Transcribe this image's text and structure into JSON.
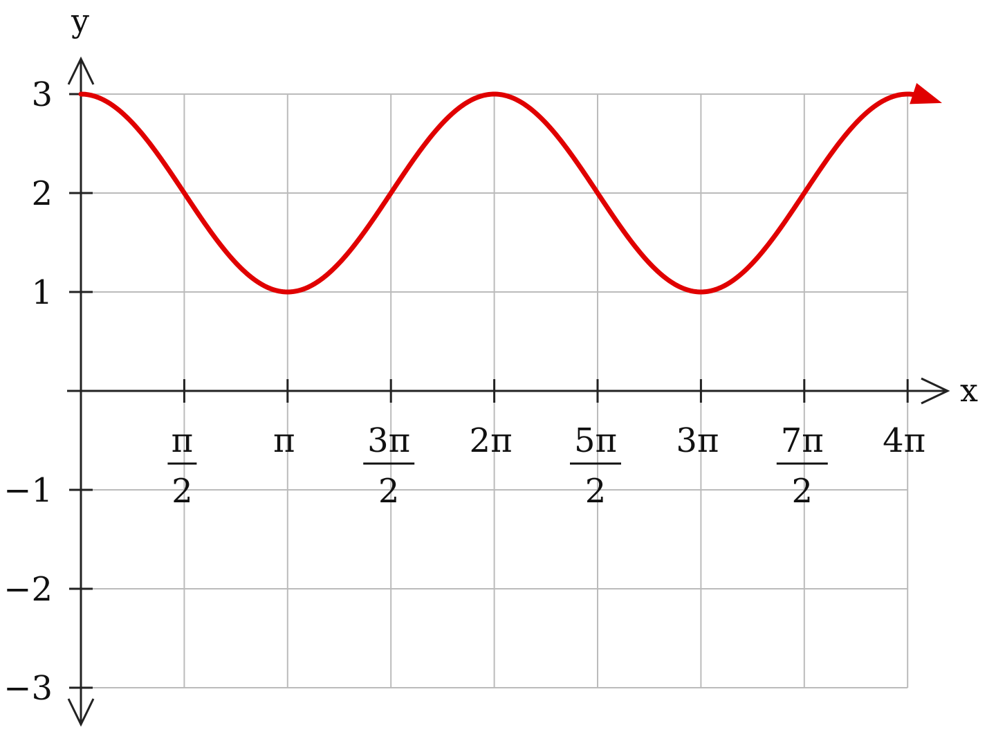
{
  "chart_data": {
    "type": "line",
    "title": "",
    "xlabel": "x",
    "ylabel": "y",
    "xlim": [
      0,
      12.566
    ],
    "ylim": [
      -3,
      3
    ],
    "grid": true,
    "x_ticks": [
      {
        "value": 1.5708,
        "numerator": "π",
        "denominator": "2"
      },
      {
        "value": 3.1416,
        "label": "π"
      },
      {
        "value": 4.7124,
        "numerator": "3π",
        "denominator": "2"
      },
      {
        "value": 6.2832,
        "label": "2π"
      },
      {
        "value": 7.854,
        "numerator": "5π",
        "denominator": "2"
      },
      {
        "value": 9.4248,
        "label": "3π"
      },
      {
        "value": 10.9956,
        "numerator": "7π",
        "denominator": "2"
      },
      {
        "value": 12.5664,
        "label": "4π"
      }
    ],
    "y_ticks": [
      {
        "value": 3,
        "label": "3"
      },
      {
        "value": 2,
        "label": "2"
      },
      {
        "value": 1,
        "label": "1"
      },
      {
        "value": -1,
        "label": "−1"
      },
      {
        "value": -2,
        "label": "−2"
      },
      {
        "value": -3,
        "label": "−3"
      }
    ],
    "series": [
      {
        "function": "cos(x) + 2",
        "color": "#e00000",
        "x": [
          0,
          0.7854,
          1.5708,
          2.3562,
          3.1416,
          3.927,
          4.7124,
          5.4978,
          6.2832,
          7.0686,
          7.854,
          8.6394,
          9.4248,
          10.2102,
          10.9956,
          11.781,
          12.5664
        ],
        "y": [
          3,
          2.707,
          2,
          1.293,
          1,
          1.293,
          2,
          2.707,
          3,
          2.707,
          2,
          1.293,
          1,
          1.293,
          2,
          2.707,
          3
        ]
      }
    ],
    "axis_color": "#222222",
    "grid_color": "#bbbbbb"
  }
}
